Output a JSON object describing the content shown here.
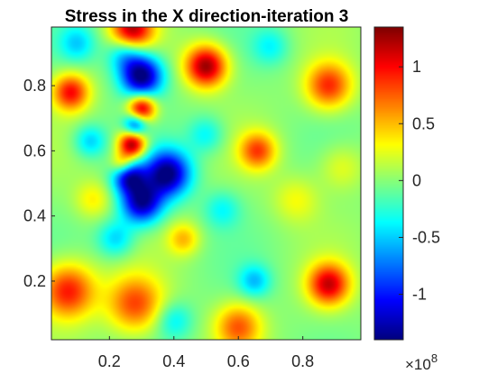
{
  "chart_data": {
    "type": "heatmap",
    "title": "Stress in the X direction-iteration 3",
    "xlabel": "",
    "ylabel": "",
    "xlim": [
      0.02,
      0.98
    ],
    "ylim": [
      0.02,
      0.98
    ],
    "x_ticks": [
      0.2,
      0.4,
      0.6,
      0.8
    ],
    "x_tick_labels": [
      "0.2",
      "0.4",
      "0.6",
      "0.8"
    ],
    "y_ticks": [
      0.2,
      0.4,
      0.6,
      0.8
    ],
    "y_tick_labels": [
      "0.2",
      "0.4",
      "0.6",
      "0.8"
    ],
    "colormap": "jet",
    "color_range": [
      -1.4,
      1.35
    ],
    "colorbar": {
      "ticks": [
        1,
        0.5,
        0,
        -0.5,
        -1
      ],
      "tick_labels": [
        "1",
        "0.5",
        "0",
        "-0.5",
        "-1"
      ],
      "exponent_base": "×10",
      "exponent_power": "8",
      "placement": "right"
    },
    "field_sources": [
      {
        "x": 0.27,
        "y": 0.62,
        "amp": 1.35,
        "r": 0.03
      },
      {
        "x": 0.3,
        "y": 0.73,
        "amp": 1.25,
        "r": 0.03
      },
      {
        "x": 0.28,
        "y": 0.68,
        "amp": -0.9,
        "r": 0.025
      },
      {
        "x": 0.24,
        "y": 0.56,
        "amp": 0.6,
        "r": 0.025
      },
      {
        "x": 0.26,
        "y": 0.52,
        "amp": -1.1,
        "r": 0.035
      },
      {
        "x": 0.3,
        "y": 0.44,
        "amp": -1.3,
        "r": 0.045
      },
      {
        "x": 0.38,
        "y": 0.53,
        "amp": -1.4,
        "r": 0.05
      },
      {
        "x": 0.3,
        "y": 0.83,
        "amp": -1.45,
        "r": 0.045
      },
      {
        "x": 0.25,
        "y": 0.9,
        "amp": -0.6,
        "r": 0.04
      },
      {
        "x": 0.5,
        "y": 0.86,
        "amp": 1.3,
        "r": 0.045
      },
      {
        "x": 0.27,
        "y": 0.97,
        "amp": 1.2,
        "r": 0.045
      },
      {
        "x": 0.08,
        "y": 0.78,
        "amp": 1.0,
        "r": 0.04
      },
      {
        "x": 0.88,
        "y": 0.8,
        "amp": 0.9,
        "r": 0.05
      },
      {
        "x": 0.66,
        "y": 0.6,
        "amp": 0.8,
        "r": 0.04
      },
      {
        "x": 0.07,
        "y": 0.17,
        "amp": 1.0,
        "r": 0.06
      },
      {
        "x": 0.28,
        "y": 0.13,
        "amp": 0.8,
        "r": 0.06
      },
      {
        "x": 0.88,
        "y": 0.19,
        "amp": 1.1,
        "r": 0.045
      },
      {
        "x": 0.6,
        "y": 0.06,
        "amp": 0.75,
        "r": 0.05
      },
      {
        "x": 0.43,
        "y": 0.33,
        "amp": 0.5,
        "r": 0.035
      },
      {
        "x": 0.22,
        "y": 0.33,
        "amp": -0.5,
        "r": 0.04
      },
      {
        "x": 0.65,
        "y": 0.2,
        "amp": -0.5,
        "r": 0.035
      },
      {
        "x": 0.14,
        "y": 0.63,
        "amp": -0.5,
        "r": 0.035
      },
      {
        "x": 0.5,
        "y": 0.65,
        "amp": -0.4,
        "r": 0.04
      },
      {
        "x": 0.1,
        "y": 0.93,
        "amp": -0.45,
        "r": 0.04
      },
      {
        "x": 0.7,
        "y": 0.92,
        "amp": -0.35,
        "r": 0.04
      },
      {
        "x": 0.78,
        "y": 0.45,
        "amp": 0.3,
        "r": 0.05
      },
      {
        "x": 0.55,
        "y": 0.42,
        "amp": -0.35,
        "r": 0.04
      },
      {
        "x": 0.92,
        "y": 0.55,
        "amp": 0.3,
        "r": 0.05
      },
      {
        "x": 0.4,
        "y": 0.08,
        "amp": -0.4,
        "r": 0.04
      },
      {
        "x": 0.15,
        "y": 0.45,
        "amp": 0.35,
        "r": 0.04
      }
    ]
  }
}
